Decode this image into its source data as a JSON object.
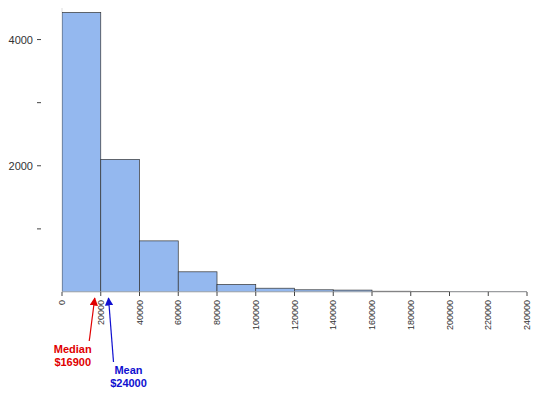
{
  "chart_data": {
    "type": "histogram",
    "bins": [
      0,
      20000,
      40000,
      60000,
      80000,
      100000,
      120000,
      140000,
      160000,
      180000,
      200000,
      220000,
      240000
    ],
    "values": [
      4430,
      2100,
      810,
      320,
      120,
      60,
      35,
      30,
      12,
      6,
      5,
      5
    ],
    "color": "#94b8ef",
    "xlim": [
      0,
      240000
    ],
    "xticks": [
      0,
      20000,
      40000,
      60000,
      80000,
      100000,
      120000,
      140000,
      160000,
      180000,
      200000,
      220000,
      240000
    ],
    "ylim": [
      0,
      4500
    ],
    "yticks": [
      {
        "value": 1000,
        "label": null
      },
      2000,
      {
        "value": 3000,
        "label": null
      },
      4000
    ],
    "grid": false,
    "annotations": [
      {
        "label": "Median",
        "text": "$16900",
        "x": 16900,
        "color": "#e00000"
      },
      {
        "label": "Mean",
        "text": "$24000",
        "x": 24000,
        "color": "#1010d0"
      }
    ]
  }
}
